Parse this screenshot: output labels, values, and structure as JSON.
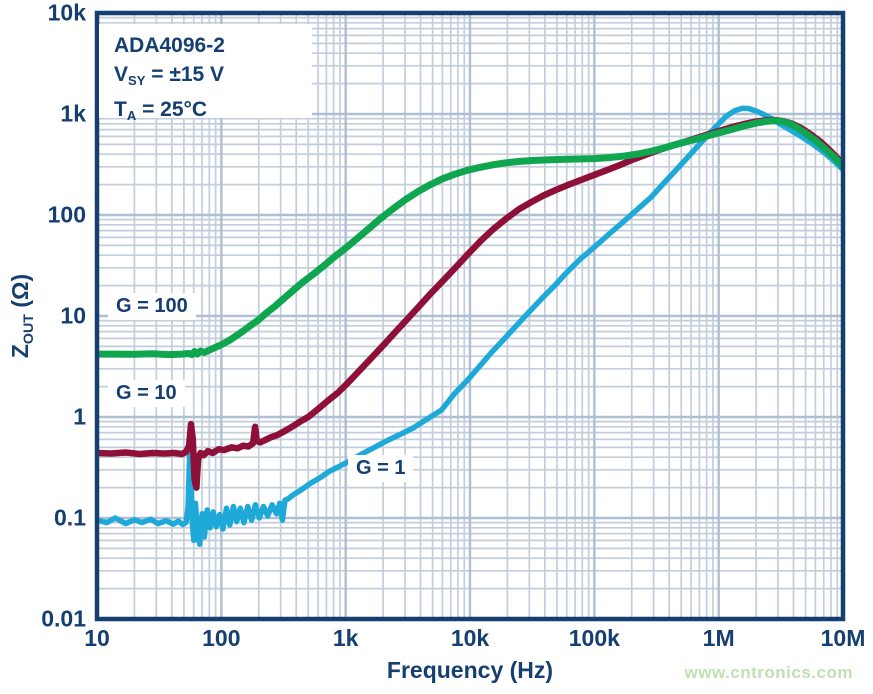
{
  "chart_data": {
    "type": "line",
    "title": "",
    "xlabel": "Frequency (Hz)",
    "ylabel": "ZOUT (Ω)",
    "x_scale": "log",
    "y_scale": "log",
    "xlim": [
      10,
      10000000
    ],
    "ylim": [
      0.01,
      10000
    ],
    "grid": "log major and minor gridlines, both axes",
    "legend_position": "inline curve labels",
    "x_ticks": [
      "10",
      "100",
      "1k",
      "10k",
      "100k",
      "1M",
      "10M"
    ],
    "x_tick_values": [
      10,
      100,
      1000,
      10000,
      100000,
      1000000,
      10000000
    ],
    "y_ticks": [
      "10k",
      "1k",
      "100",
      "10",
      "1",
      "0.1",
      "0.01"
    ],
    "y_tick_values": [
      10000,
      1000,
      100,
      10,
      1,
      0.1,
      0.01
    ],
    "annotations": [
      "ADA4096-2",
      "VSY = ±15 V",
      "TA = 25°C"
    ],
    "series": [
      {
        "name": "G = 100",
        "color": "#10a64f",
        "width": 7,
        "points": [
          [
            10,
            4.2
          ],
          [
            14,
            4.2
          ],
          [
            20,
            4.18
          ],
          [
            28,
            4.22
          ],
          [
            38,
            4.15
          ],
          [
            48,
            4.2
          ],
          [
            55,
            4.25
          ],
          [
            58,
            4.15
          ],
          [
            61,
            4.45
          ],
          [
            64,
            4.2
          ],
          [
            68,
            4.5
          ],
          [
            73,
            4.35
          ],
          [
            80,
            4.6
          ],
          [
            90,
            4.9
          ],
          [
            100,
            5.2
          ],
          [
            115,
            5.7
          ],
          [
            130,
            6.3
          ],
          [
            150,
            7.1
          ],
          [
            175,
            8.2
          ],
          [
            200,
            9.2
          ],
          [
            230,
            10.7
          ],
          [
            270,
            12.5
          ],
          [
            320,
            15
          ],
          [
            380,
            18
          ],
          [
            450,
            21.5
          ],
          [
            550,
            26
          ],
          [
            680,
            32
          ],
          [
            820,
            39
          ],
          [
            1000,
            47
          ],
          [
            1250,
            59
          ],
          [
            1550,
            74
          ],
          [
            1900,
            92
          ],
          [
            2400,
            115
          ],
          [
            3000,
            141
          ],
          [
            3800,
            170
          ],
          [
            4800,
            200
          ],
          [
            6000,
            228
          ],
          [
            7500,
            253
          ],
          [
            9500,
            277
          ],
          [
            12000,
            296
          ],
          [
            15000,
            313
          ],
          [
            19000,
            327
          ],
          [
            25000,
            339
          ],
          [
            33000,
            347
          ],
          [
            45000,
            352
          ],
          [
            60000,
            356
          ],
          [
            80000,
            359
          ],
          [
            100000,
            362
          ],
          [
            130000,
            370
          ],
          [
            170000,
            382
          ],
          [
            220000,
            400
          ],
          [
            280000,
            425
          ],
          [
            360000,
            460
          ],
          [
            450000,
            498
          ],
          [
            560000,
            535
          ],
          [
            700000,
            575
          ],
          [
            850000,
            615
          ],
          [
            1000000,
            650
          ],
          [
            1250000,
            700
          ],
          [
            1600000,
            760
          ],
          [
            2000000,
            812
          ],
          [
            2400000,
            845
          ],
          [
            2800000,
            860
          ],
          [
            3200000,
            848
          ],
          [
            3700000,
            805
          ],
          [
            4300000,
            730
          ],
          [
            5000000,
            645
          ],
          [
            6000000,
            545
          ],
          [
            7000000,
            465
          ],
          [
            8500000,
            375
          ],
          [
            10000000,
            303
          ]
        ]
      },
      {
        "name": "G = 10",
        "color": "#8e1038",
        "width": 6.5,
        "points": [
          [
            10,
            0.44
          ],
          [
            13,
            0.435
          ],
          [
            17,
            0.445
          ],
          [
            22,
            0.43
          ],
          [
            28,
            0.44
          ],
          [
            35,
            0.435
          ],
          [
            42,
            0.44
          ],
          [
            48,
            0.43
          ],
          [
            52,
            0.45
          ],
          [
            55,
            0.52
          ],
          [
            57,
            0.85
          ],
          [
            59,
            0.6
          ],
          [
            61,
            0.24
          ],
          [
            63,
            0.2
          ],
          [
            65,
            0.38
          ],
          [
            68,
            0.44
          ],
          [
            72,
            0.42
          ],
          [
            78,
            0.46
          ],
          [
            85,
            0.44
          ],
          [
            95,
            0.48
          ],
          [
            105,
            0.47
          ],
          [
            120,
            0.5
          ],
          [
            135,
            0.49
          ],
          [
            150,
            0.52
          ],
          [
            165,
            0.51
          ],
          [
            180,
            0.55
          ],
          [
            187,
            0.8
          ],
          [
            193,
            0.58
          ],
          [
            205,
            0.56
          ],
          [
            225,
            0.59
          ],
          [
            250,
            0.63
          ],
          [
            280,
            0.66
          ],
          [
            320,
            0.72
          ],
          [
            370,
            0.8
          ],
          [
            430,
            0.9
          ],
          [
            500,
            1.0
          ],
          [
            600,
            1.2
          ],
          [
            720,
            1.45
          ],
          [
            870,
            1.75
          ],
          [
            1050,
            2.2
          ],
          [
            1300,
            2.9
          ],
          [
            1600,
            3.8
          ],
          [
            2000,
            5.1
          ],
          [
            2500,
            6.9
          ],
          [
            3100,
            9.2
          ],
          [
            3900,
            12.5
          ],
          [
            4900,
            17
          ],
          [
            6200,
            23
          ],
          [
            7800,
            31
          ],
          [
            9800,
            42
          ],
          [
            12300,
            56
          ],
          [
            15500,
            73
          ],
          [
            19500,
            92
          ],
          [
            24500,
            113
          ],
          [
            31000,
            134
          ],
          [
            39000,
            156
          ],
          [
            49000,
            177
          ],
          [
            62000,
            199
          ],
          [
            78000,
            222
          ],
          [
            98000,
            247
          ],
          [
            125000,
            277
          ],
          [
            160000,
            312
          ],
          [
            200000,
            350
          ],
          [
            260000,
            395
          ],
          [
            330000,
            440
          ],
          [
            420000,
            485
          ],
          [
            530000,
            530
          ],
          [
            670000,
            580
          ],
          [
            850000,
            635
          ],
          [
            1050000,
            690
          ],
          [
            1300000,
            745
          ],
          [
            1600000,
            795
          ],
          [
            2000000,
            840
          ],
          [
            2400000,
            865
          ],
          [
            2800000,
            872
          ],
          [
            3300000,
            850
          ],
          [
            3900000,
            800
          ],
          [
            4600000,
            725
          ],
          [
            5500000,
            630
          ],
          [
            6600000,
            530
          ],
          [
            8000000,
            425
          ],
          [
            10000000,
            320
          ]
        ]
      },
      {
        "name": "G = 1",
        "color": "#1ea9d9",
        "width": 5.5,
        "points": [
          [
            10,
            0.095
          ],
          [
            12,
            0.09
          ],
          [
            14,
            0.1
          ],
          [
            17,
            0.088
          ],
          [
            20,
            0.096
          ],
          [
            23,
            0.09
          ],
          [
            27,
            0.097
          ],
          [
            31,
            0.088
          ],
          [
            36,
            0.094
          ],
          [
            41,
            0.087
          ],
          [
            45,
            0.093
          ],
          [
            49,
            0.086
          ],
          [
            52,
            0.09
          ],
          [
            54,
            0.13
          ],
          [
            56,
            0.55
          ],
          [
            57,
            0.3
          ],
          [
            58,
            0.1
          ],
          [
            60,
            0.06
          ],
          [
            62,
            0.14
          ],
          [
            64,
            0.075
          ],
          [
            67,
            0.055
          ],
          [
            70,
            0.11
          ],
          [
            73,
            0.065
          ],
          [
            77,
            0.12
          ],
          [
            81,
            0.08
          ],
          [
            86,
            0.115
          ],
          [
            91,
            0.082
          ],
          [
            97,
            0.108
          ],
          [
            103,
            0.078
          ],
          [
            110,
            0.125
          ],
          [
            117,
            0.085
          ],
          [
            125,
            0.13
          ],
          [
            133,
            0.092
          ],
          [
            142,
            0.125
          ],
          [
            152,
            0.09
          ],
          [
            163,
            0.13
          ],
          [
            175,
            0.095
          ],
          [
            188,
            0.135
          ],
          [
            202,
            0.1
          ],
          [
            218,
            0.13
          ],
          [
            236,
            0.105
          ],
          [
            256,
            0.135
          ],
          [
            278,
            0.11
          ],
          [
            295,
            0.14
          ],
          [
            310,
            0.095
          ],
          [
            325,
            0.15
          ],
          [
            345,
            0.155
          ],
          [
            380,
            0.17
          ],
          [
            440,
            0.19
          ],
          [
            520,
            0.22
          ],
          [
            620,
            0.25
          ],
          [
            740,
            0.29
          ],
          [
            870,
            0.32
          ],
          [
            1000,
            0.35
          ],
          [
            1300,
            0.42
          ],
          [
            1700,
            0.5
          ],
          [
            2200,
            0.59
          ],
          [
            2800,
            0.68
          ],
          [
            3500,
            0.78
          ],
          [
            4500,
            0.95
          ],
          [
            5900,
            1.17
          ],
          [
            7500,
            1.7
          ],
          [
            9500,
            2.3
          ],
          [
            12000,
            3.2
          ],
          [
            15000,
            4.4
          ],
          [
            19000,
            6
          ],
          [
            24000,
            8.2
          ],
          [
            30000,
            11
          ],
          [
            38000,
            15
          ],
          [
            48000,
            20
          ],
          [
            60000,
            27
          ],
          [
            76000,
            36
          ],
          [
            100000,
            48
          ],
          [
            130000,
            64
          ],
          [
            170000,
            85
          ],
          [
            215000,
            110
          ],
          [
            286000,
            150
          ],
          [
            360000,
            205
          ],
          [
            450000,
            275
          ],
          [
            560000,
            370
          ],
          [
            700000,
            500
          ],
          [
            850000,
            650
          ],
          [
            1000000,
            800
          ],
          [
            1150000,
            950
          ],
          [
            1350000,
            1080
          ],
          [
            1550000,
            1140
          ],
          [
            1750000,
            1130
          ],
          [
            2000000,
            1070
          ],
          [
            2300000,
            990
          ],
          [
            2700000,
            890
          ],
          [
            3200000,
            780
          ],
          [
            3800000,
            690
          ],
          [
            4500000,
            610
          ],
          [
            5500000,
            520
          ],
          [
            7000000,
            420
          ],
          [
            8500000,
            340
          ],
          [
            10000000,
            280
          ]
        ]
      }
    ]
  },
  "annotation": {
    "part": "ADA4096-2",
    "v_sym": "V",
    "v_sub": "SY",
    "v_rest": " = ±15 V",
    "t_sym": "T",
    "t_sub": "A",
    "t_rest": " = 25°C"
  },
  "axis": {
    "y_sym": "Z",
    "y_sub": "OUT",
    "y_unit": " (Ω)",
    "x_label": "Frequency (Hz)"
  },
  "watermark": "www.cntronics.com",
  "colors": {
    "axis_navy": "#153f70",
    "grid_major": "#aebfd3",
    "grid_minor": "#c3cedd",
    "green_g100": "#10a64f",
    "maroon_g10": "#8e1038",
    "cyan_g1": "#1ea9d9",
    "watermark_green": "#bfe0b3",
    "background": "#ffffff"
  }
}
